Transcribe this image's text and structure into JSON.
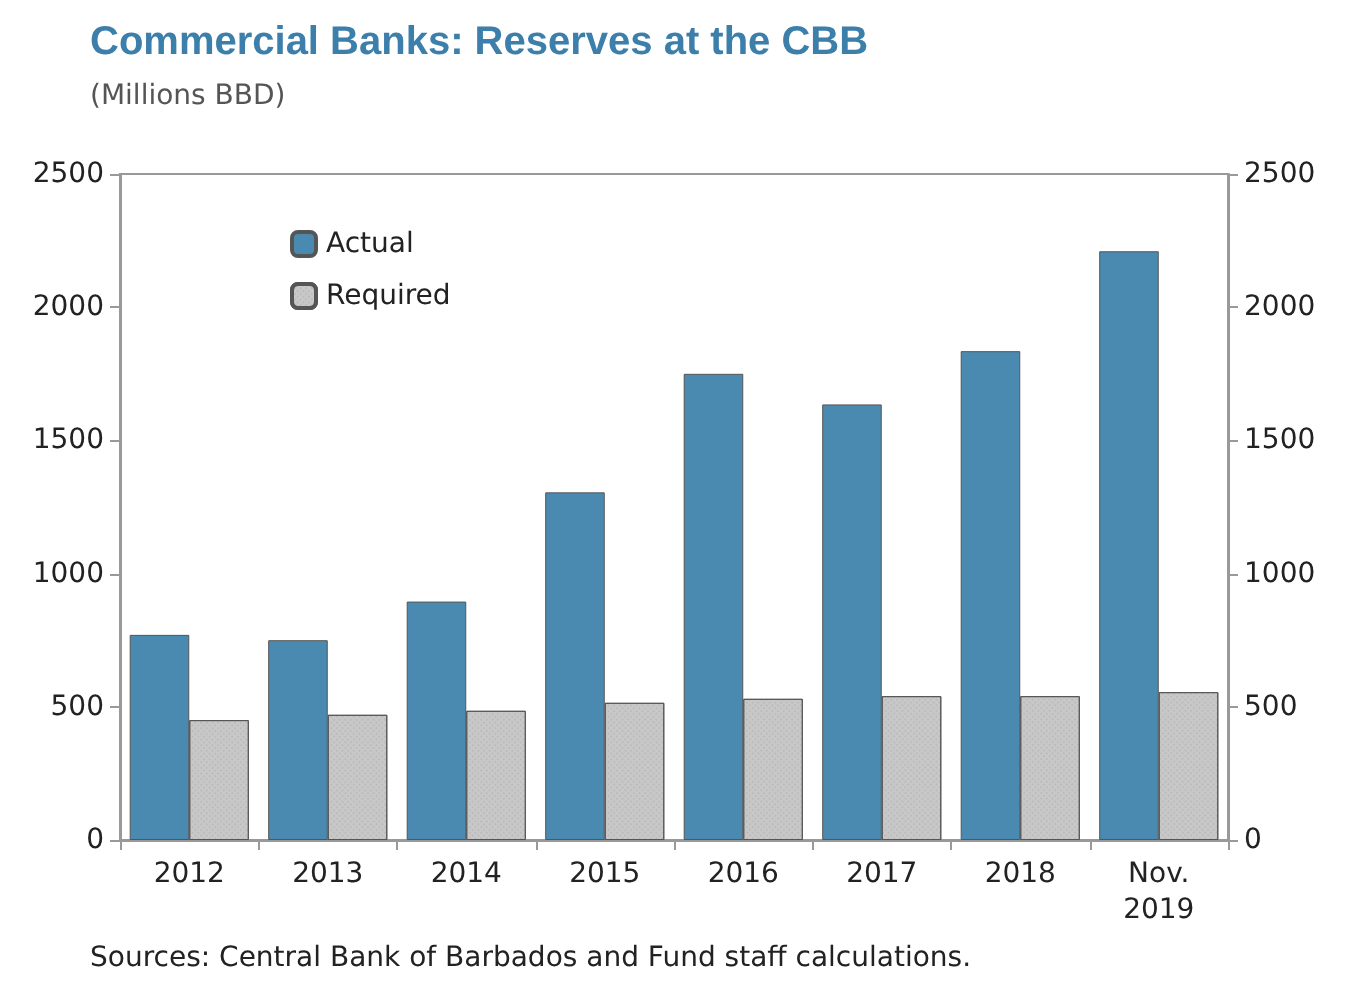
{
  "chart_data": {
    "type": "bar",
    "title": "Commercial Banks: Reserves at the CBB",
    "subtitle": "(Millions BBD)",
    "categories": [
      "2012",
      "2013",
      "2014",
      "2015",
      "2016",
      "2017",
      "2018",
      "Nov.\n2019"
    ],
    "series": [
      {
        "name": "Actual",
        "color": "#4a8ab0",
        "values": [
          770,
          750,
          895,
          1305,
          1750,
          1635,
          1835,
          2210
        ]
      },
      {
        "name": "Required",
        "color": "#c8c8c8",
        "values": [
          450,
          470,
          485,
          515,
          530,
          540,
          540,
          555
        ]
      }
    ],
    "ylim": [
      0,
      2500
    ],
    "yticks": [
      0,
      500,
      1000,
      1500,
      2000,
      2500
    ],
    "y2lim": [
      0,
      2500
    ],
    "y2ticks": [
      0,
      500,
      1000,
      1500,
      2000,
      2500
    ],
    "grid": false,
    "legend": "top left",
    "annotations": [
      "Sources: Central Bank of Barbados and Fund staff calculations."
    ]
  }
}
